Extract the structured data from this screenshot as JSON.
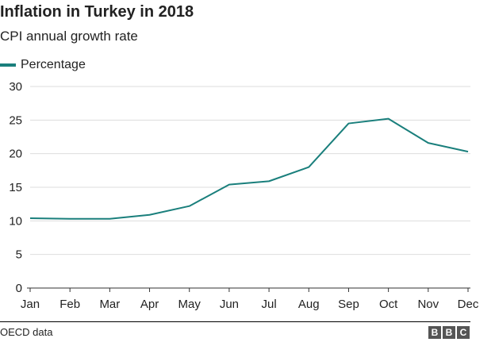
{
  "chart_data": {
    "type": "line",
    "title": "Inflation in Turkey in 2018",
    "subtitle": "CPI annual growth rate",
    "categories": [
      "Jan",
      "Feb",
      "Mar",
      "Apr",
      "May",
      "Jun",
      "Jul",
      "Aug",
      "Sep",
      "Oct",
      "Nov",
      "Dec"
    ],
    "series": [
      {
        "name": "Percentage",
        "values": [
          10.4,
          10.3,
          10.3,
          10.9,
          12.2,
          15.4,
          15.9,
          18.0,
          24.5,
          25.2,
          21.6,
          20.3
        ],
        "color": "#1a7f7c"
      }
    ],
    "ylim": [
      0,
      30
    ],
    "yticks": [
      0,
      5,
      10,
      15,
      20,
      25,
      30
    ],
    "grid": true,
    "legend_position": "top-left",
    "xlabel": "",
    "ylabel": ""
  },
  "footer": {
    "source": "OECD data",
    "logo_letters": [
      "B",
      "B",
      "C"
    ]
  },
  "colors": {
    "series": "#1a7f7c",
    "grid": "#dddddd",
    "axis": "#333333"
  }
}
